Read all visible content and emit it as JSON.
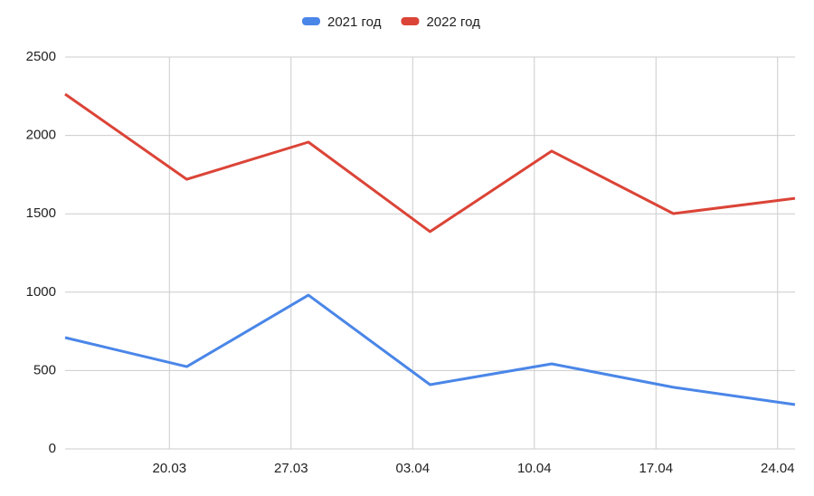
{
  "chart_data": {
    "type": "line",
    "x": [
      "14.03",
      "21.03",
      "28.03",
      "04.04",
      "11.04",
      "18.04",
      "25.04"
    ],
    "series": [
      {
        "name": "2021 год",
        "color": "#4a86e8",
        "values": [
          710,
          525,
          981,
          410,
          543,
          393,
          283
        ]
      },
      {
        "name": "2022 год",
        "color": "#db4437",
        "values": [
          2263,
          1720,
          1957,
          1386,
          1900,
          1501,
          1599
        ]
      }
    ],
    "xlim": [
      "14.03",
      "25.04"
    ],
    "xticks": [
      "20.03",
      "27.03",
      "03.04",
      "10.04",
      "17.04",
      "24.04"
    ],
    "ylim": [
      0,
      2500
    ],
    "yticks": [
      0,
      500,
      1000,
      1500,
      2000,
      2500
    ],
    "grid": true,
    "legend": "top"
  }
}
